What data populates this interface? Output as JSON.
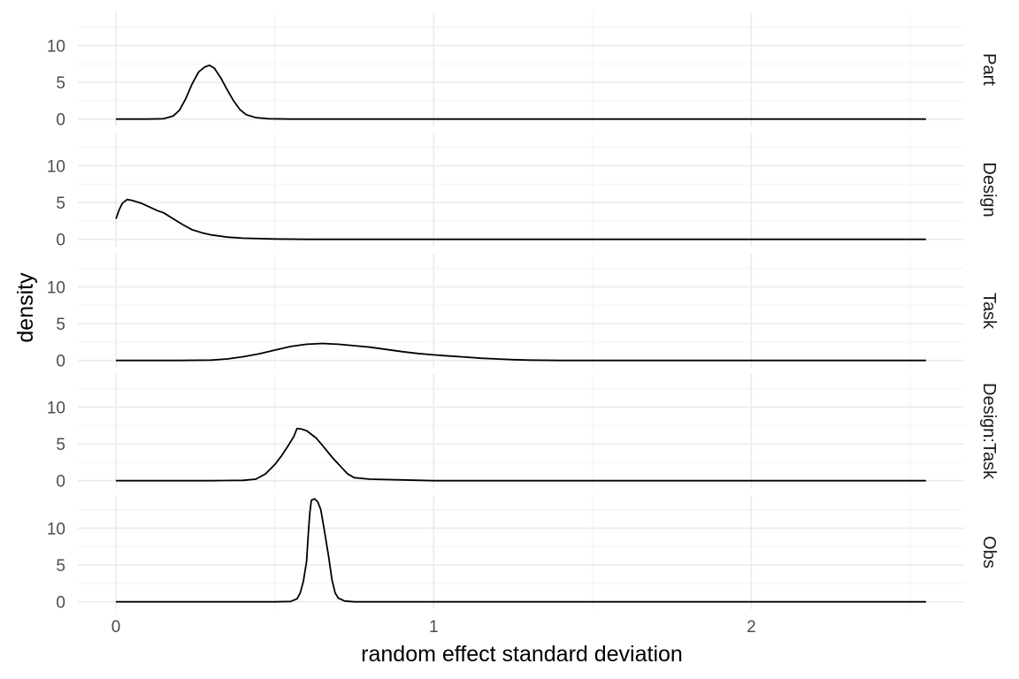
{
  "chart_data": {
    "type": "line",
    "xlabel": "random effect standard deviation",
    "ylabel": "density",
    "xlim": [
      -0.12,
      2.67
    ],
    "ylim": [
      -1,
      14.5
    ],
    "x_ticks": [
      0,
      1,
      2
    ],
    "x_tick_labels": [
      "0",
      "1",
      "2"
    ],
    "y_ticks": [
      0,
      5,
      10
    ],
    "y_tick_labels": [
      "0",
      "5",
      "10"
    ],
    "grid": true,
    "legend": "none",
    "facets": [
      {
        "name": "Part",
        "points": [
          [
            0,
            0
          ],
          [
            0.1,
            0
          ],
          [
            0.15,
            0.05
          ],
          [
            0.18,
            0.4
          ],
          [
            0.2,
            1.2
          ],
          [
            0.22,
            2.8
          ],
          [
            0.24,
            4.8
          ],
          [
            0.26,
            6.4
          ],
          [
            0.28,
            7.1
          ],
          [
            0.295,
            7.3
          ],
          [
            0.31,
            6.9
          ],
          [
            0.33,
            5.6
          ],
          [
            0.35,
            4.0
          ],
          [
            0.37,
            2.5
          ],
          [
            0.39,
            1.3
          ],
          [
            0.41,
            0.6
          ],
          [
            0.44,
            0.2
          ],
          [
            0.48,
            0.05
          ],
          [
            0.55,
            0
          ],
          [
            1.0,
            0
          ],
          [
            2.0,
            0
          ],
          [
            2.55,
            0
          ]
        ]
      },
      {
        "name": "Design",
        "points": [
          [
            0,
            2.8
          ],
          [
            0.01,
            4.0
          ],
          [
            0.02,
            4.9
          ],
          [
            0.035,
            5.4
          ],
          [
            0.05,
            5.3
          ],
          [
            0.08,
            4.9
          ],
          [
            0.1,
            4.5
          ],
          [
            0.13,
            3.9
          ],
          [
            0.15,
            3.6
          ],
          [
            0.18,
            2.8
          ],
          [
            0.21,
            2.0
          ],
          [
            0.24,
            1.3
          ],
          [
            0.27,
            0.9
          ],
          [
            0.3,
            0.6
          ],
          [
            0.35,
            0.3
          ],
          [
            0.4,
            0.15
          ],
          [
            0.5,
            0.05
          ],
          [
            0.6,
            0
          ],
          [
            1.0,
            0
          ],
          [
            2.0,
            0
          ],
          [
            2.55,
            0
          ]
        ]
      },
      {
        "name": "Task",
        "points": [
          [
            0,
            0
          ],
          [
            0.2,
            0
          ],
          [
            0.3,
            0.05
          ],
          [
            0.35,
            0.2
          ],
          [
            0.4,
            0.5
          ],
          [
            0.45,
            0.9
          ],
          [
            0.5,
            1.4
          ],
          [
            0.55,
            1.9
          ],
          [
            0.6,
            2.2
          ],
          [
            0.65,
            2.3
          ],
          [
            0.7,
            2.2
          ],
          [
            0.75,
            2.0
          ],
          [
            0.8,
            1.8
          ],
          [
            0.85,
            1.5
          ],
          [
            0.9,
            1.2
          ],
          [
            0.95,
            0.95
          ],
          [
            1.0,
            0.75
          ],
          [
            1.05,
            0.6
          ],
          [
            1.1,
            0.45
          ],
          [
            1.15,
            0.3
          ],
          [
            1.2,
            0.2
          ],
          [
            1.25,
            0.1
          ],
          [
            1.3,
            0.05
          ],
          [
            1.4,
            0
          ],
          [
            2.0,
            0
          ],
          [
            2.55,
            0
          ]
        ]
      },
      {
        "name": "Design:Task",
        "points": [
          [
            0,
            0
          ],
          [
            0.3,
            0
          ],
          [
            0.4,
            0.05
          ],
          [
            0.44,
            0.2
          ],
          [
            0.47,
            0.9
          ],
          [
            0.5,
            2.2
          ],
          [
            0.52,
            3.3
          ],
          [
            0.54,
            4.6
          ],
          [
            0.56,
            6.0
          ],
          [
            0.57,
            7.1
          ],
          [
            0.585,
            7.0
          ],
          [
            0.6,
            6.8
          ],
          [
            0.63,
            5.8
          ],
          [
            0.65,
            4.8
          ],
          [
            0.68,
            3.2
          ],
          [
            0.71,
            1.8
          ],
          [
            0.73,
            0.9
          ],
          [
            0.75,
            0.4
          ],
          [
            0.8,
            0.2
          ],
          [
            0.9,
            0.1
          ],
          [
            1.0,
            0
          ],
          [
            2.0,
            0
          ],
          [
            2.55,
            0
          ]
        ]
      },
      {
        "name": "Obs",
        "points": [
          [
            0,
            0
          ],
          [
            0.5,
            0
          ],
          [
            0.55,
            0.05
          ],
          [
            0.57,
            0.4
          ],
          [
            0.58,
            1.2
          ],
          [
            0.59,
            2.8
          ],
          [
            0.6,
            5.5
          ],
          [
            0.605,
            9.0
          ],
          [
            0.61,
            12.0
          ],
          [
            0.615,
            13.8
          ],
          [
            0.625,
            14.0
          ],
          [
            0.635,
            13.6
          ],
          [
            0.645,
            12.5
          ],
          [
            0.655,
            10.0
          ],
          [
            0.67,
            6.0
          ],
          [
            0.68,
            3.0
          ],
          [
            0.69,
            1.2
          ],
          [
            0.7,
            0.5
          ],
          [
            0.72,
            0.1
          ],
          [
            0.75,
            0
          ],
          [
            1.0,
            0
          ],
          [
            2.0,
            0
          ],
          [
            2.55,
            0
          ]
        ]
      }
    ]
  }
}
